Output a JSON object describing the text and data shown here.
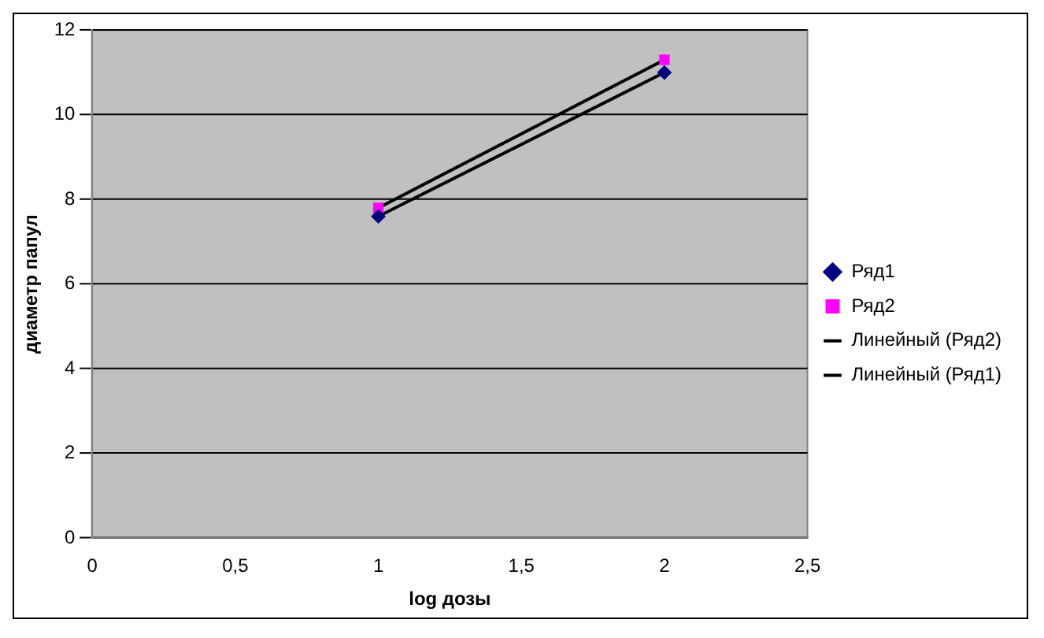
{
  "chart_data": {
    "type": "scatter",
    "xlabel": "log дозы",
    "ylabel": "диаметр папул",
    "xlim": [
      0,
      2.5
    ],
    "xticks": [
      0,
      {
        "value": 0.5,
        "label": "0,5"
      },
      1,
      {
        "value": 1.5,
        "label": "1,5"
      },
      2,
      {
        "value": 2.5,
        "label": "2,5"
      }
    ],
    "ylim": [
      0,
      12
    ],
    "yticks": [
      0,
      2,
      4,
      6,
      8,
      10,
      12
    ],
    "grid": "y",
    "legend": "right",
    "x": [
      1,
      2
    ],
    "series": [
      {
        "name": "Ряд1",
        "type": "scatter",
        "marker": "diamond",
        "color": "#000080",
        "values": [
          7.6,
          11.0
        ]
      },
      {
        "name": "Ряд2",
        "type": "scatter",
        "marker": "square",
        "color": "#ff00ff",
        "values": [
          7.8,
          11.3
        ]
      },
      {
        "name": "Линейный (Ряд2)",
        "type": "line",
        "marker": "none",
        "color": "#000000",
        "values": [
          7.8,
          11.3
        ]
      },
      {
        "name": "Линейный (Ряд1)",
        "type": "line",
        "marker": "none",
        "color": "#000000",
        "values": [
          7.6,
          11.0
        ]
      }
    ]
  }
}
